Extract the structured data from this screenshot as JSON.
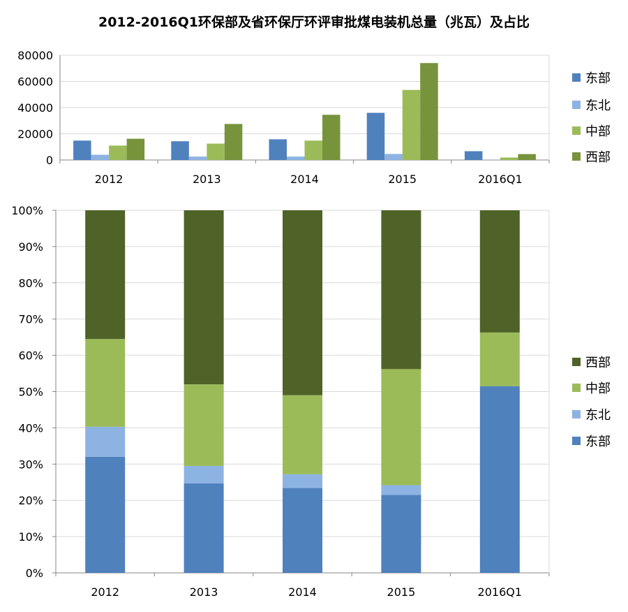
{
  "title": "2012-2016Q1环保部及省环保厅环评审批煤电装机总量（兆瓦）及占比",
  "colors": {
    "东部": "#4f81bd",
    "东北": "#8db3e2",
    "中部": "#9bbb59",
    "西部": "#4f6228",
    "西部_top": "#77933c"
  },
  "chart_data": [
    {
      "type": "bar",
      "categories": [
        "2012",
        "2013",
        "2014",
        "2015",
        "2016Q1"
      ],
      "series": [
        {
          "name": "东部",
          "values": [
            14800,
            14300,
            15800,
            36000,
            6700
          ]
        },
        {
          "name": "东北",
          "values": [
            4000,
            2600,
            2600,
            4600,
            100
          ]
        },
        {
          "name": "中部",
          "values": [
            11000,
            12500,
            14800,
            53500,
            1900
          ]
        },
        {
          "name": "西部",
          "values": [
            16200,
            27500,
            34500,
            74000,
            4500
          ]
        }
      ],
      "ylim": [
        0,
        80000
      ],
      "yticks": [
        "0",
        "20000",
        "40000",
        "60000",
        "80000"
      ],
      "legend": {
        "position": "right",
        "entries": [
          "东部",
          "东北",
          "中部",
          "西部"
        ]
      },
      "grid": true
    },
    {
      "type": "bar",
      "stacked": "percent",
      "categories": [
        "2012",
        "2013",
        "2014",
        "2015",
        "2016Q1"
      ],
      "series": [
        {
          "name": "东部",
          "values": [
            32,
            24.7,
            23.4,
            21.5,
            51.5
          ]
        },
        {
          "name": "东北",
          "values": [
            8.3,
            4.8,
            3.8,
            2.7,
            0
          ]
        },
        {
          "name": "中部",
          "values": [
            24.2,
            22.5,
            21.8,
            32.0,
            14.8
          ]
        },
        {
          "name": "西部",
          "values": [
            35.5,
            48.0,
            51.0,
            43.8,
            33.7
          ]
        }
      ],
      "ylim": [
        0,
        100
      ],
      "yticks": [
        "0%",
        "10%",
        "20%",
        "30%",
        "40%",
        "50%",
        "60%",
        "70%",
        "80%",
        "90%",
        "100%"
      ],
      "legend": {
        "position": "right",
        "entries": [
          "西部",
          "中部",
          "东北",
          "东部"
        ]
      },
      "grid": true
    }
  ]
}
